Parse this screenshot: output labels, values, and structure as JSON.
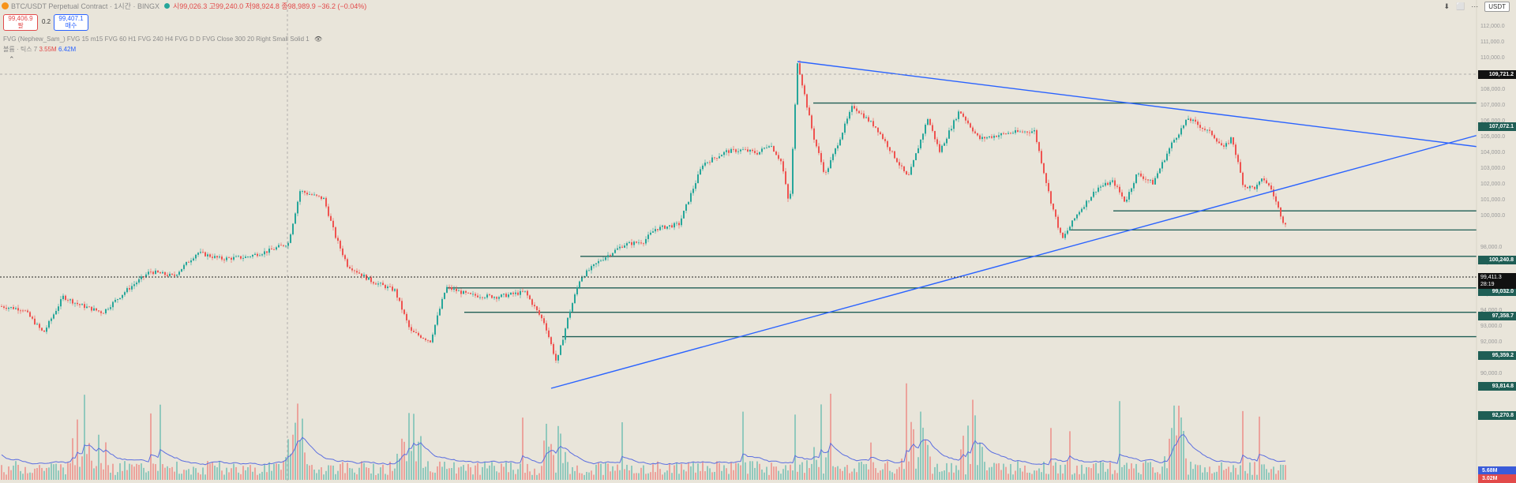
{
  "header": {
    "symbol": "BTC/USDT Perpetual Contract · 1시간 · BINGX",
    "ohlc": "시99,026.3  고99,240.0  저98,924.8  종98,989.9  −36.2 (−0.04%)"
  },
  "sell_box": {
    "price": "99,406.9",
    "label": "팔"
  },
  "buy_box": {
    "price": "99,407.1",
    "label": "매수"
  },
  "spread": "0.2",
  "indicator_line": "FVG (Nephew_Sam_) FVG 15 m15 FVG 60 H1 FVG 240 H4 FVG D D FVG Close 300 20 Right Small Solid 1",
  "volume_line": {
    "label": "볼륨 · 틱스 7",
    "v1": "3.55M",
    "v2": "6.42M"
  },
  "top_right": {
    "currency": "USDT"
  },
  "axis_ticks": [
    {
      "y": 32,
      "t": "112,000.0"
    },
    {
      "y": 52,
      "t": "111,000.0"
    },
    {
      "y": 72,
      "t": "110,000.0"
    },
    {
      "y": 92,
      "t": "109,000.0"
    },
    {
      "y": 112,
      "t": "108,000.0"
    },
    {
      "y": 132,
      "t": "107,000.0"
    },
    {
      "y": 152,
      "t": "106,000.0"
    },
    {
      "y": 172,
      "t": "105,000.0"
    },
    {
      "y": 192,
      "t": "104,000.0"
    },
    {
      "y": 212,
      "t": "103,000.0"
    },
    {
      "y": 232,
      "t": "102,000.0"
    },
    {
      "y": 252,
      "t": "101,000.0"
    },
    {
      "y": 272,
      "t": "100,000.0"
    },
    {
      "y": 312,
      "t": "98,000.0"
    },
    {
      "y": 332,
      "t": "97,000.0"
    },
    {
      "y": 352,
      "t": "96,000.0"
    },
    {
      "y": 372,
      "t": "95,000.0"
    },
    {
      "y": 392,
      "t": "94,000.0"
    },
    {
      "y": 412,
      "t": "93,000.0"
    },
    {
      "y": 432,
      "t": "92,000.0"
    },
    {
      "y": 452,
      "t": "91,000.0"
    },
    {
      "y": 472,
      "t": "90,000.0"
    }
  ],
  "price_labels": [
    {
      "y": 94,
      "t": "109,721.2",
      "c": "black"
    },
    {
      "y": 160,
      "t": "107,072.1",
      "c": "green"
    },
    {
      "y": 329,
      "t": "100,240.8",
      "c": "green"
    },
    {
      "y": 369,
      "t": "99,032.0",
      "c": "green"
    },
    {
      "y": 400,
      "t": "97,358.7",
      "c": "green"
    },
    {
      "y": 450,
      "t": "95,359.2",
      "c": "green"
    },
    {
      "y": 489,
      "t": "93,814.8",
      "c": "green"
    },
    {
      "y": 526,
      "t": "92,270.8",
      "c": "green"
    }
  ],
  "current_price": {
    "price": "99,411.3",
    "countdown": "28:19"
  },
  "volume_labels": {
    "v1": "5.68M",
    "v2": "3.02M"
  },
  "colors": {
    "bg": "#e9e5da",
    "up": "#26a69a",
    "down": "#ef5350",
    "trend": "#2962ff",
    "fvg": "#1f5e55"
  },
  "chart_data": {
    "type": "candlestick",
    "symbol": "BTC/USDT Perpetual Contract",
    "interval": "1시간",
    "exchange": "BINGX",
    "ylim": [
      89000,
      113500
    ],
    "price_path": [
      [
        0,
        94200
      ],
      [
        30,
        94000
      ],
      [
        55,
        92500
      ],
      [
        80,
        94800
      ],
      [
        100,
        94300
      ],
      [
        130,
        93800
      ],
      [
        160,
        95200
      ],
      [
        190,
        96400
      ],
      [
        220,
        96100
      ],
      [
        250,
        97600
      ],
      [
        280,
        97200
      ],
      [
        310,
        97300
      ],
      [
        340,
        97700
      ],
      [
        365,
        98200
      ],
      [
        380,
        101500
      ],
      [
        410,
        101000
      ],
      [
        425,
        98600
      ],
      [
        440,
        96800
      ],
      [
        470,
        95800
      ],
      [
        500,
        95200
      ],
      [
        520,
        92600
      ],
      [
        545,
        92000
      ],
      [
        565,
        95400
      ],
      [
        595,
        94900
      ],
      [
        630,
        94800
      ],
      [
        665,
        95100
      ],
      [
        690,
        93100
      ],
      [
        705,
        90600
      ],
      [
        720,
        93600
      ],
      [
        735,
        96000
      ],
      [
        760,
        97100
      ],
      [
        790,
        98100
      ],
      [
        815,
        98300
      ],
      [
        830,
        99100
      ],
      [
        860,
        99400
      ],
      [
        890,
        103200
      ],
      [
        920,
        104000
      ],
      [
        940,
        104100
      ],
      [
        960,
        103900
      ],
      [
        975,
        104500
      ],
      [
        990,
        103300
      ],
      [
        1000,
        100400
      ],
      [
        1010,
        109700
      ],
      [
        1030,
        105000
      ],
      [
        1045,
        102500
      ],
      [
        1080,
        106900
      ],
      [
        1110,
        105500
      ],
      [
        1150,
        102300
      ],
      [
        1175,
        106100
      ],
      [
        1190,
        104000
      ],
      [
        1215,
        106600
      ],
      [
        1240,
        104800
      ],
      [
        1280,
        105200
      ],
      [
        1310,
        105300
      ],
      [
        1330,
        101000
      ],
      [
        1345,
        98400
      ],
      [
        1365,
        100100
      ],
      [
        1390,
        101700
      ],
      [
        1410,
        102100
      ],
      [
        1425,
        100800
      ],
      [
        1440,
        102600
      ],
      [
        1460,
        102000
      ],
      [
        1485,
        104600
      ],
      [
        1505,
        106100
      ],
      [
        1535,
        105100
      ],
      [
        1550,
        104200
      ],
      [
        1560,
        104900
      ],
      [
        1575,
        101800
      ],
      [
        1590,
        101700
      ],
      [
        1600,
        102300
      ],
      [
        1610,
        101600
      ],
      [
        1625,
        99600
      ],
      [
        1630,
        99400
      ]
    ],
    "volume_spikes": [
      105,
      375,
      520,
      700,
      1040,
      1160,
      1230,
      1490
    ],
    "fvg_levels": [
      {
        "price": 107072.1,
        "x_start": 1030
      },
      {
        "price": 100240.8,
        "x_start": 1410
      },
      {
        "price": 99032.0,
        "x_start": 1355
      },
      {
        "price": 97358.7,
        "x_start": 735
      },
      {
        "price": 95359.2,
        "x_start": 565
      },
      {
        "price": 93814.8,
        "x_start": 588
      },
      {
        "price": 92270.8,
        "x_start": 712
      }
    ],
    "trendlines": [
      {
        "from": [
          1010,
          109700
        ],
        "to": [
          1920,
          104000
        ]
      },
      {
        "from": [
          698,
          89000
        ],
        "to": [
          1920,
          105700
        ]
      }
    ],
    "current_price": 99411.3,
    "ath": 109721.2
  }
}
